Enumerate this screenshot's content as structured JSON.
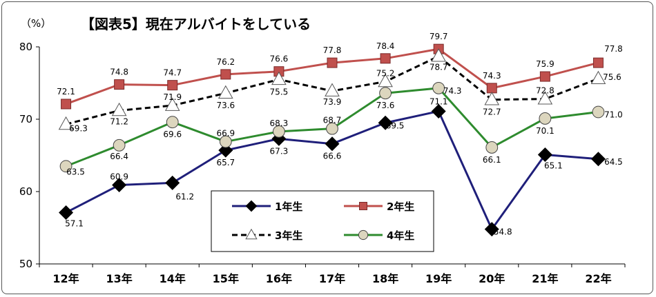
{
  "chart_data": {
    "type": "line",
    "title": "【図表5】現在アルバイトをしている",
    "unit_label": "（%）",
    "categories": [
      "12年",
      "13年",
      "14年",
      "15年",
      "16年",
      "17年",
      "18年",
      "19年",
      "20年",
      "21年",
      "22年"
    ],
    "ylim": [
      50,
      80
    ],
    "yticks": [
      50,
      60,
      70,
      80
    ],
    "grid": false,
    "legend_position": "inside-bottom-center",
    "series": [
      {
        "name": "1年生",
        "color": "#1f1f7a",
        "dash": "solid",
        "marker": "diamond",
        "marker_fill": "#000000",
        "values": [
          57.1,
          60.9,
          61.2,
          65.7,
          67.3,
          66.6,
          69.5,
          71.1,
          54.8,
          65.1,
          64.5
        ]
      },
      {
        "name": "2年生",
        "color": "#c0504d",
        "dash": "solid",
        "marker": "square",
        "marker_fill": "#c0504d",
        "values": [
          72.1,
          74.8,
          74.7,
          76.2,
          76.6,
          77.8,
          78.4,
          79.7,
          74.3,
          75.9,
          77.8
        ]
      },
      {
        "name": "3年生",
        "color": "#000000",
        "dash": "dashed",
        "marker": "triangle",
        "marker_fill": "#ffffff",
        "values": [
          69.3,
          71.2,
          71.9,
          73.6,
          75.5,
          73.9,
          75.2,
          78.7,
          72.7,
          72.8,
          75.6
        ]
      },
      {
        "name": "4年生",
        "color": "#2e8b2e",
        "dash": "solid",
        "marker": "circle",
        "marker_fill": "#dcd6be",
        "values": [
          63.5,
          66.4,
          69.6,
          66.9,
          68.3,
          68.7,
          73.6,
          74.3,
          66.1,
          70.1,
          71.0
        ]
      }
    ],
    "data_labels": [
      [
        "57.1",
        "60.9",
        "61.2",
        "65.7",
        "67.3",
        "66.6",
        "69.5",
        "71.1",
        "54.8",
        "65.1",
        "64.5"
      ],
      [
        "72.1",
        "74.8",
        "74.7",
        "76.2",
        "76.6",
        "77.8",
        "78.4",
        "79.7",
        "74.3",
        "75.9",
        "77.8"
      ],
      [
        "69.3",
        "71.2",
        "71.9",
        "73.6",
        "75.5",
        "73.9",
        "75.2",
        "78.7",
        "72.7",
        "72.8",
        "75.6"
      ],
      [
        "63.5",
        "66.4",
        "69.6",
        "66.9",
        "68.3",
        "68.7",
        "73.6",
        "74.3",
        "66.1",
        "70.1",
        "71.0"
      ]
    ]
  }
}
